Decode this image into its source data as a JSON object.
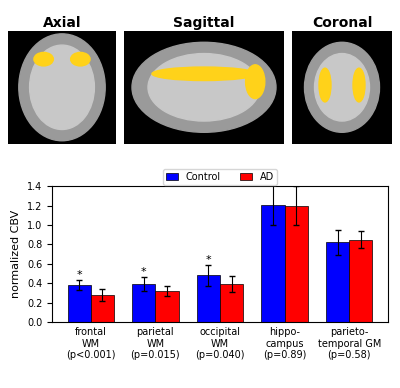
{
  "panels": {
    "images": [
      {
        "title": "Axial"
      },
      {
        "title": "Sagittal"
      },
      {
        "title": "Coronal"
      }
    ]
  },
  "chart_data": {
    "type": "bar",
    "y_label": "normalized CBV",
    "categories": [
      "frontal\nWM\n(p<0.001)",
      "parietal\nWM\n(p=0.015)",
      "occipital\nWM\n(p=0.040)",
      "hippo-\ncampus\n(p=0.89)",
      "parieto-\ntemporal GM\n(p=0.58)"
    ],
    "series": [
      {
        "name": "Control",
        "color": "#0000ff",
        "values": [
          0.38,
          0.39,
          0.48,
          1.21,
          0.82
        ],
        "errors": [
          0.05,
          0.07,
          0.11,
          0.21,
          0.13
        ]
      },
      {
        "name": "AD",
        "color": "#ff0000",
        "values": [
          0.28,
          0.32,
          0.39,
          1.2,
          0.85
        ],
        "errors": [
          0.06,
          0.05,
          0.08,
          0.2,
          0.09
        ]
      }
    ],
    "annotations": [
      {
        "text": "*",
        "category": "frontal\nWM\n(p<0.001)",
        "series": "Control"
      },
      {
        "text": "*",
        "category": "parietal\nWM\n(p=0.015)",
        "series": "Control"
      },
      {
        "text": "*",
        "category": "occipital\nWM\n(p=0.040)",
        "series": "Control"
      }
    ],
    "ylim": [
      0,
      1.4
    ],
    "yticks": [
      {
        "value": 0,
        "label": "0.0"
      },
      {
        "value": 0.2,
        "label": "0.2"
      },
      {
        "value": 0.4,
        "label": "0.4"
      },
      {
        "value": 0.6,
        "label": "0.6"
      },
      {
        "value": 0.8,
        "label": "0.8"
      },
      {
        "value": 1.0,
        "label": "1.0"
      },
      {
        "value": 1.2,
        "label": "1.2"
      },
      {
        "value": 1.4,
        "label": "1.4"
      }
    ],
    "grid": false,
    "legend": "upper center"
  }
}
